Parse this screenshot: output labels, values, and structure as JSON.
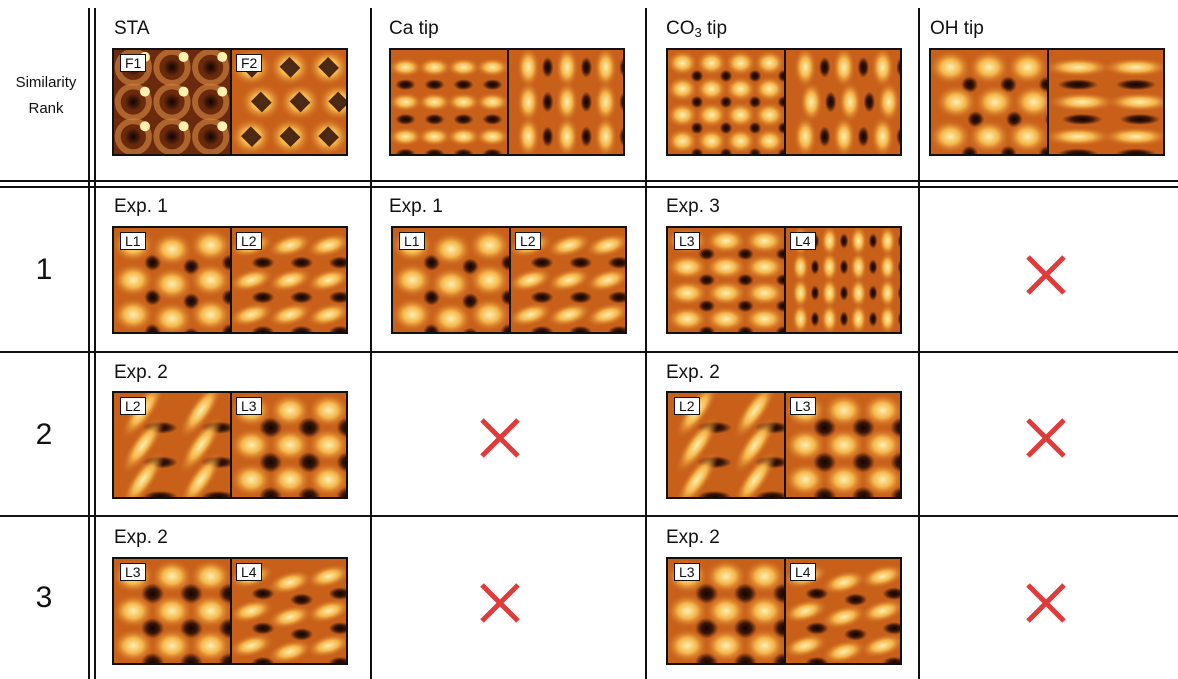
{
  "header": {
    "rank_label": [
      "Similarity",
      "Rank"
    ],
    "columns": [
      {
        "key": "sta",
        "title_main": "STA",
        "title_sub": "",
        "title_tail": ""
      },
      {
        "key": "ca",
        "title_main": "Ca tip",
        "title_sub": "",
        "title_tail": ""
      },
      {
        "key": "co3",
        "title_main": "CO",
        "title_sub": "3",
        "title_tail": " tip"
      },
      {
        "key": "oh",
        "title_main": "OH tip",
        "title_sub": "",
        "title_tail": ""
      }
    ],
    "reference_images": {
      "sta": [
        "F1",
        "F2"
      ],
      "ca": [
        "",
        ""
      ],
      "co3": [
        "",
        ""
      ],
      "oh": [
        "",
        ""
      ]
    }
  },
  "rows": [
    {
      "rank": "1",
      "cells": [
        {
          "match": true,
          "exp": "Exp. 1",
          "tags": [
            "L1",
            "L2"
          ]
        },
        {
          "match": true,
          "exp": "Exp. 1",
          "tags": [
            "L1",
            "L2"
          ]
        },
        {
          "match": true,
          "exp": "Exp. 3",
          "tags": [
            "L3",
            "L4"
          ]
        },
        {
          "match": false
        }
      ]
    },
    {
      "rank": "2",
      "cells": [
        {
          "match": true,
          "exp": "Exp. 2",
          "tags": [
            "L2",
            "L3"
          ]
        },
        {
          "match": false
        },
        {
          "match": true,
          "exp": "Exp. 2",
          "tags": [
            "L2",
            "L3"
          ]
        },
        {
          "match": false
        }
      ]
    },
    {
      "rank": "3",
      "cells": [
        {
          "match": true,
          "exp": "Exp. 2",
          "tags": [
            "L3",
            "L4"
          ]
        },
        {
          "match": false
        },
        {
          "match": true,
          "exp": "Exp. 2",
          "tags": [
            "L3",
            "L4"
          ]
        },
        {
          "match": false
        }
      ]
    }
  ],
  "colors": {
    "no_match_mark": "#e03a3a",
    "heat_dark": "#3a1608",
    "heat_mid": "#c8601a",
    "heat_bright": "#fff0b0"
  },
  "icons": {
    "no_match": "x-mark-icon"
  }
}
